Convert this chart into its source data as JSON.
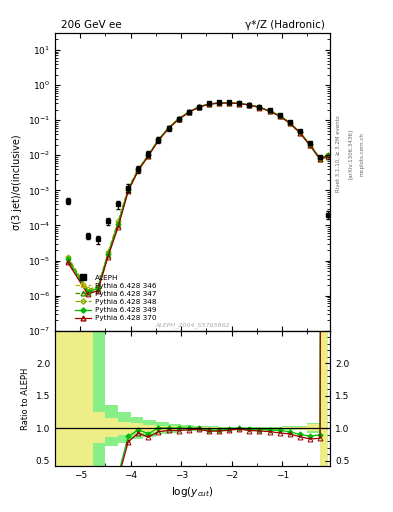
{
  "title_left": "206 GeV ee",
  "title_right": "γ*/Z (Hadronic)",
  "ylabel_main": "σ(3 jet)/σ(inclusive)",
  "ylabel_ratio": "Ratio to ALEPH",
  "xlabel": "log(y_{cut})",
  "rivet_label": "Rivet 3.1.10, ≥ 3.2M events",
  "arxiv_label": "[arXiv:1306.3436]",
  "mcplots_label": "mcplots.cern.ch",
  "ref_label": "ALEPH_2004_S5765862",
  "x_data": [
    -5.25,
    -4.85,
    -4.65,
    -4.45,
    -4.25,
    -4.05,
    -3.85,
    -3.65,
    -3.45,
    -3.25,
    -3.05,
    -2.85,
    -2.65,
    -2.45,
    -2.25,
    -2.05,
    -1.85,
    -1.65,
    -1.45,
    -1.25,
    -1.05,
    -0.85,
    -0.65,
    -0.45,
    -0.25,
    -0.1
  ],
  "aleph_y": [
    0.0005,
    5e-05,
    4e-05,
    0.00013,
    0.0004,
    0.0012,
    0.004,
    0.011,
    0.028,
    0.06,
    0.11,
    0.17,
    0.24,
    0.3,
    0.32,
    0.32,
    0.3,
    0.28,
    0.24,
    0.19,
    0.14,
    0.09,
    0.05,
    0.023,
    0.009,
    0.0002
  ],
  "aleph_yerr": [
    0.0001,
    1e-05,
    1e-05,
    3e-05,
    0.0001,
    0.0003,
    0.0008,
    0.002,
    0.005,
    0.01,
    0.015,
    0.02,
    0.025,
    0.025,
    0.025,
    0.025,
    0.02,
    0.02,
    0.015,
    0.01,
    0.008,
    0.005,
    0.003,
    0.0015,
    0.0006,
    5e-05
  ],
  "py346_y": [
    1.2e-05,
    1.4e-06,
    1.7e-06,
    1.6e-05,
    0.00012,
    0.0011,
    0.004,
    0.01,
    0.028,
    0.06,
    0.11,
    0.17,
    0.24,
    0.29,
    0.31,
    0.315,
    0.3,
    0.275,
    0.235,
    0.185,
    0.135,
    0.085,
    0.045,
    0.02,
    0.008,
    0.01
  ],
  "py347_y": [
    1e-05,
    1.2e-06,
    1.5e-06,
    1.4e-05,
    0.0001,
    0.001,
    0.0038,
    0.0098,
    0.027,
    0.059,
    0.108,
    0.168,
    0.238,
    0.288,
    0.308,
    0.312,
    0.298,
    0.272,
    0.232,
    0.182,
    0.132,
    0.083,
    0.044,
    0.0195,
    0.0078,
    0.009
  ],
  "py348_y": [
    1.3e-05,
    1.5e-06,
    1.8e-06,
    1.7e-05,
    0.00013,
    0.00115,
    0.0041,
    0.0102,
    0.0282,
    0.0605,
    0.1105,
    0.1705,
    0.2405,
    0.2905,
    0.3105,
    0.3155,
    0.3005,
    0.2755,
    0.2355,
    0.1855,
    0.1355,
    0.0855,
    0.0455,
    0.0205,
    0.0082,
    0.0105
  ],
  "py349_y": [
    1.1e-05,
    1.3e-06,
    1.6e-06,
    1.5e-05,
    0.00011,
    0.00105,
    0.0039,
    0.0101,
    0.0281,
    0.0602,
    0.1102,
    0.1702,
    0.2402,
    0.2902,
    0.3102,
    0.3152,
    0.3002,
    0.2752,
    0.2352,
    0.1852,
    0.1352,
    0.0852,
    0.0452,
    0.0202,
    0.0081,
    0.0102
  ],
  "py370_y": [
    9e-06,
    1.1e-06,
    1.4e-06,
    1.3e-05,
    9e-05,
    0.00095,
    0.0037,
    0.0095,
    0.0265,
    0.058,
    0.106,
    0.166,
    0.236,
    0.286,
    0.306,
    0.31,
    0.296,
    0.27,
    0.23,
    0.18,
    0.13,
    0.082,
    0.0435,
    0.0192,
    0.0076,
    0.0095
  ],
  "band_x_edges": [
    -5.5,
    -5.0,
    -4.75,
    -4.5,
    -4.25,
    -4.0,
    -3.75,
    -3.5,
    -3.25,
    -3.0,
    -2.75,
    -2.5,
    -2.25,
    -2.0,
    -1.75,
    -1.5,
    -1.25,
    -1.0,
    -0.75,
    -0.5,
    -0.25,
    -0.1
  ],
  "band_green_hi": [
    2.5,
    2.5,
    2.5,
    1.35,
    1.25,
    1.18,
    1.13,
    1.09,
    1.07,
    1.05,
    1.04,
    1.03,
    1.025,
    1.02,
    1.02,
    1.02,
    1.02,
    1.03,
    1.04,
    1.08,
    2.5,
    2.5
  ],
  "band_green_lo": [
    0.4,
    0.4,
    0.4,
    0.72,
    0.78,
    0.83,
    0.87,
    0.91,
    0.93,
    0.95,
    0.96,
    0.97,
    0.975,
    0.98,
    0.98,
    0.98,
    0.98,
    0.975,
    0.965,
    0.93,
    0.4,
    0.4
  ],
  "band_yellow_hi": [
    2.5,
    2.5,
    1.25,
    1.15,
    1.1,
    1.08,
    1.05,
    1.04,
    1.03,
    1.025,
    1.02,
    1.015,
    1.01,
    1.01,
    1.01,
    1.01,
    1.01,
    1.015,
    1.025,
    1.06,
    2.5,
    2.5
  ],
  "band_yellow_lo": [
    0.4,
    0.4,
    0.78,
    0.86,
    0.9,
    0.92,
    0.94,
    0.955,
    0.965,
    0.975,
    0.98,
    0.985,
    0.988,
    0.99,
    0.99,
    0.99,
    0.99,
    0.985,
    0.975,
    0.95,
    0.4,
    0.4
  ],
  "color_346": "#c8b400",
  "color_347": "#448800",
  "color_348": "#88aa00",
  "color_349": "#00bb00",
  "color_370": "#990000",
  "color_aleph": "#000000",
  "bg_green": "#88ee88",
  "bg_yellow": "#eeee88",
  "xlim": [
    -5.5,
    -0.05
  ],
  "ylim_main": [
    1e-07,
    30.0
  ],
  "ylim_ratio": [
    0.42,
    2.5
  ]
}
